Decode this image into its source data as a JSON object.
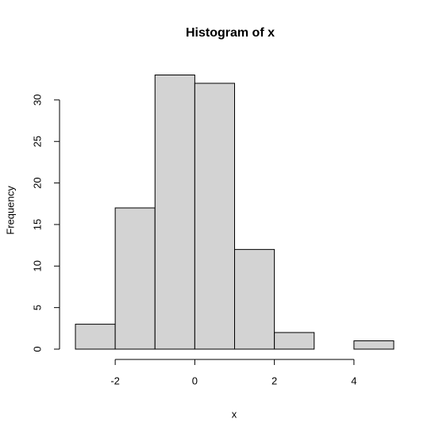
{
  "chart_data": {
    "type": "histogram",
    "title": "Histogram of x",
    "x_label": "x",
    "y_label": "Frequency",
    "bins": [
      -3,
      -2,
      -1,
      0,
      1,
      2,
      3,
      4,
      5
    ],
    "values": [
      3,
      17,
      33,
      32,
      12,
      2,
      0,
      1
    ],
    "color": "#d3d3d3",
    "edge_color": "#000000",
    "xlim": [
      -3,
      5
    ],
    "xticks": [
      -2,
      0,
      2,
      4
    ],
    "ylim": [
      0,
      33
    ],
    "yticks": [
      0,
      5,
      10,
      15,
      20,
      25,
      30
    ],
    "grid": false
  }
}
